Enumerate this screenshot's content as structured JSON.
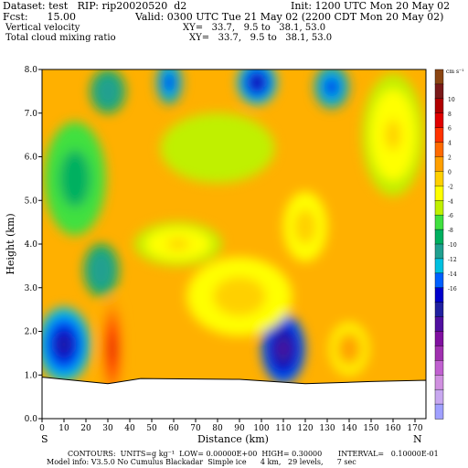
{
  "header": {
    "line1_left": "Dataset: test   RIP: rip20020520  d2",
    "line1_right": "Init: 1200 UTC Mon 20 May 02",
    "line2_left": "Fcst:      15.00",
    "line2_right": "Valid: 0300 UTC Tue 21 May 02 (2200 CDT Mon 20 May 02)",
    "line3_left": "Vertical velocity",
    "line3_right": "XY=   33.7,   9.5 to   38.1, 53.0",
    "line4_left": "Total cloud mixing ratio",
    "line4_right": "XY=   33.7,   9.5 to   38.1, 53.0"
  },
  "footer": {
    "contours": "CONTOURS:  UNITS=g kg⁻¹  LOW= 0.00000E+00  HIGH= 0.30000       INTERVAL=   0.10000E-01",
    "model_info": "Model info: V3.5.0 No Cumulus Blackadar  Simple ice      4 km,   29 levels,      7 sec"
  },
  "chart_data": {
    "type": "heatmap",
    "xlabel": "Distance (km)",
    "ylabel": "Height (km)",
    "xlim": [
      0,
      175
    ],
    "ylim": [
      0,
      8
    ],
    "x_ticks": [
      "0",
      "10",
      "20",
      "30",
      "40",
      "50",
      "60",
      "70",
      "80",
      "90",
      "100",
      "110",
      "120",
      "130",
      "140",
      "150",
      "160",
      "170"
    ],
    "y_ticks": [
      "0.0",
      "1.0",
      "2.0",
      "3.0",
      "4.0",
      "5.0",
      "6.0",
      "7.0",
      "8.0"
    ],
    "x_end_labels": {
      "left": "S",
      "right": "N"
    },
    "colorbar": {
      "unit": "cm s⁻¹",
      "labels": [
        "10",
        "8",
        "6",
        "4",
        "2",
        "0",
        "-2",
        "-4",
        "-6",
        "-8",
        "-10",
        "-12",
        "-14",
        "-16"
      ],
      "colors": [
        "#8B4513",
        "#7a1a1a",
        "#b00000",
        "#e00000",
        "#ff3300",
        "#ff6a00",
        "#ffa000",
        "#ffd000",
        "#ffff00",
        "#c0f000",
        "#40e040",
        "#00b060",
        "#20a090",
        "#00c0e0",
        "#0060ff",
        "#0000cc",
        "#2020a0",
        "#5010a0",
        "#8010a0",
        "#a030b0",
        "#c060d0",
        "#d090e0",
        "#c8a8f0",
        "#a0a0ff"
      ]
    },
    "blobs": [
      {
        "x": 10,
        "y": 1.7,
        "rx": 12,
        "ry": 0.85,
        "value": -8
      },
      {
        "x": 32,
        "y": 1.6,
        "rx": 5,
        "ry": 1.2,
        "value": 8
      },
      {
        "x": 27,
        "y": 3.4,
        "rx": 8,
        "ry": 0.6,
        "value": -3
      },
      {
        "x": 110,
        "y": 1.6,
        "rx": 10,
        "ry": 0.8,
        "value": -9
      },
      {
        "x": 140,
        "y": 1.6,
        "rx": 9,
        "ry": 0.6,
        "value": 5
      },
      {
        "x": 90,
        "y": 2.8,
        "rx": 24,
        "ry": 0.9,
        "value": 4
      },
      {
        "x": 62,
        "y": 4.0,
        "rx": 20,
        "ry": 0.5,
        "value": 3
      },
      {
        "x": 120,
        "y": 4.4,
        "rx": 10,
        "ry": 0.8,
        "value": 4
      },
      {
        "x": 30,
        "y": 7.5,
        "rx": 8,
        "ry": 0.5,
        "value": -3
      },
      {
        "x": 58,
        "y": 7.7,
        "rx": 6,
        "ry": 0.5,
        "value": -6
      },
      {
        "x": 98,
        "y": 7.7,
        "rx": 9,
        "ry": 0.5,
        "value": -7
      },
      {
        "x": 132,
        "y": 7.6,
        "rx": 8,
        "ry": 0.5,
        "value": -6
      },
      {
        "x": 160,
        "y": 6.5,
        "rx": 14,
        "ry": 1.4,
        "value": 3
      },
      {
        "x": 15,
        "y": 5.5,
        "rx": 14,
        "ry": 1.3,
        "value": -1
      },
      {
        "x": 80,
        "y": 6.2,
        "rx": 26,
        "ry": 0.8,
        "value": 1
      }
    ],
    "terrain_height": [
      {
        "x": 0,
        "y": 0.95
      },
      {
        "x": 30,
        "y": 0.8
      },
      {
        "x": 45,
        "y": 0.92
      },
      {
        "x": 90,
        "y": 0.9
      },
      {
        "x": 120,
        "y": 0.8
      },
      {
        "x": 150,
        "y": 0.85
      },
      {
        "x": 175,
        "y": 0.88
      }
    ]
  }
}
